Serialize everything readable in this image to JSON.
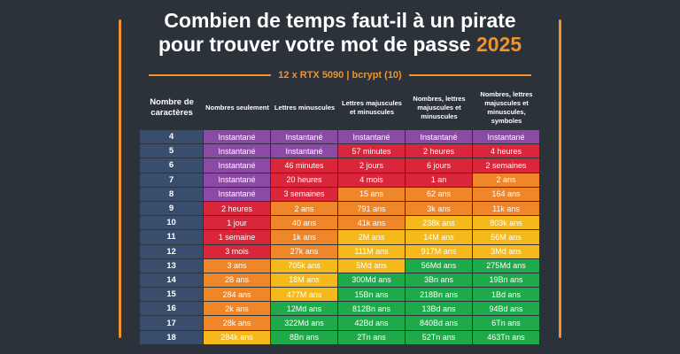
{
  "title": {
    "line1": "Combien de temps faut-il à un pirate",
    "line2": "pour trouver votre mot de passe",
    "year": "2025"
  },
  "subtitle": "12 x RTX 5090 | bcrypt (10)",
  "headers": {
    "chars": "Nombre de caractères",
    "columns": [
      "Nombres seulement",
      "Lettres minuscules",
      "Lettres majuscules et minuscules",
      "Nombres, lettres majuscules et minuscules",
      "Nombres, lettres majuscules et minuscules, symboles"
    ]
  },
  "colors": {
    "purple": "#8b4aa4",
    "red": "#d9263a",
    "orange": "#f0862a",
    "yellow": "#f5b91c",
    "green": "#1ea94a",
    "number_cell": "#384e6c",
    "accent": "#f0922d"
  },
  "rows": [
    {
      "n": "4",
      "cells": [
        [
          "Instantané",
          "purple"
        ],
        [
          "Instantané",
          "purple"
        ],
        [
          "Instantané",
          "purple"
        ],
        [
          "Instantané",
          "purple"
        ],
        [
          "Instantané",
          "purple"
        ]
      ]
    },
    {
      "n": "5",
      "cells": [
        [
          "Instantané",
          "purple"
        ],
        [
          "Instantané",
          "purple"
        ],
        [
          "57 minutes",
          "red"
        ],
        [
          "2 heures",
          "red"
        ],
        [
          "4 heures",
          "red"
        ]
      ]
    },
    {
      "n": "6",
      "cells": [
        [
          "Instantané",
          "purple"
        ],
        [
          "46 minutes",
          "red"
        ],
        [
          "2 jours",
          "red"
        ],
        [
          "6 jours",
          "red"
        ],
        [
          "2 semaines",
          "red"
        ]
      ]
    },
    {
      "n": "7",
      "cells": [
        [
          "Instantané",
          "purple"
        ],
        [
          "20 heures",
          "red"
        ],
        [
          "4 mois",
          "red"
        ],
        [
          "1 an",
          "red"
        ],
        [
          "2 ans",
          "orange"
        ]
      ]
    },
    {
      "n": "8",
      "cells": [
        [
          "Instantané",
          "purple"
        ],
        [
          "3 semaines",
          "red"
        ],
        [
          "15 ans",
          "orange"
        ],
        [
          "62 ans",
          "orange"
        ],
        [
          "164 ans",
          "orange"
        ]
      ]
    },
    {
      "n": "9",
      "cells": [
        [
          "2 heures",
          "red"
        ],
        [
          "2 ans",
          "orange"
        ],
        [
          "791 ans",
          "orange"
        ],
        [
          "3k ans",
          "orange"
        ],
        [
          "11k ans",
          "orange"
        ]
      ]
    },
    {
      "n": "10",
      "cells": [
        [
          "1 jour",
          "red"
        ],
        [
          "40 ans",
          "orange"
        ],
        [
          "41k ans",
          "orange"
        ],
        [
          "238k ans",
          "yellow"
        ],
        [
          "803k ans",
          "yellow"
        ]
      ]
    },
    {
      "n": "11",
      "cells": [
        [
          "1 semaine",
          "red"
        ],
        [
          "1k ans",
          "orange"
        ],
        [
          "2M ans",
          "yellow"
        ],
        [
          "14M ans",
          "yellow"
        ],
        [
          "56M ans",
          "yellow"
        ]
      ]
    },
    {
      "n": "12",
      "cells": [
        [
          "3 mois",
          "red"
        ],
        [
          "27k ans",
          "orange"
        ],
        [
          "111M ans",
          "yellow"
        ],
        [
          "917M ans",
          "yellow"
        ],
        [
          "3Md ans",
          "yellow"
        ]
      ]
    },
    {
      "n": "13",
      "cells": [
        [
          "3 ans",
          "orange"
        ],
        [
          "705k ans",
          "yellow"
        ],
        [
          "5Md ans",
          "yellow"
        ],
        [
          "56Md ans",
          "green"
        ],
        [
          "275Md ans",
          "green"
        ]
      ]
    },
    {
      "n": "14",
      "cells": [
        [
          "28 ans",
          "orange"
        ],
        [
          "18M ans",
          "yellow"
        ],
        [
          "300Md ans",
          "green"
        ],
        [
          "3Bn ans",
          "green"
        ],
        [
          "19Bn ans",
          "green"
        ]
      ]
    },
    {
      "n": "15",
      "cells": [
        [
          "284 ans",
          "orange"
        ],
        [
          "477M ans",
          "yellow"
        ],
        [
          "15Bn ans",
          "green"
        ],
        [
          "218Bn ans",
          "green"
        ],
        [
          "1Bd ans",
          "green"
        ]
      ]
    },
    {
      "n": "16",
      "cells": [
        [
          "2k ans",
          "orange"
        ],
        [
          "12Md ans",
          "green"
        ],
        [
          "812Bn ans",
          "green"
        ],
        [
          "13Bd ans",
          "green"
        ],
        [
          "94Bd ans",
          "green"
        ]
      ]
    },
    {
      "n": "17",
      "cells": [
        [
          "28k ans",
          "orange"
        ],
        [
          "322Md ans",
          "green"
        ],
        [
          "42Bd ans",
          "green"
        ],
        [
          "840Bd ans",
          "green"
        ],
        [
          "6Tn ans",
          "green"
        ]
      ]
    },
    {
      "n": "18",
      "cells": [
        [
          "284k ans",
          "yellow"
        ],
        [
          "8Bn ans",
          "green"
        ],
        [
          "2Tn ans",
          "green"
        ],
        [
          "52Tn ans",
          "green"
        ],
        [
          "463Tn ans",
          "green"
        ]
      ]
    }
  ]
}
